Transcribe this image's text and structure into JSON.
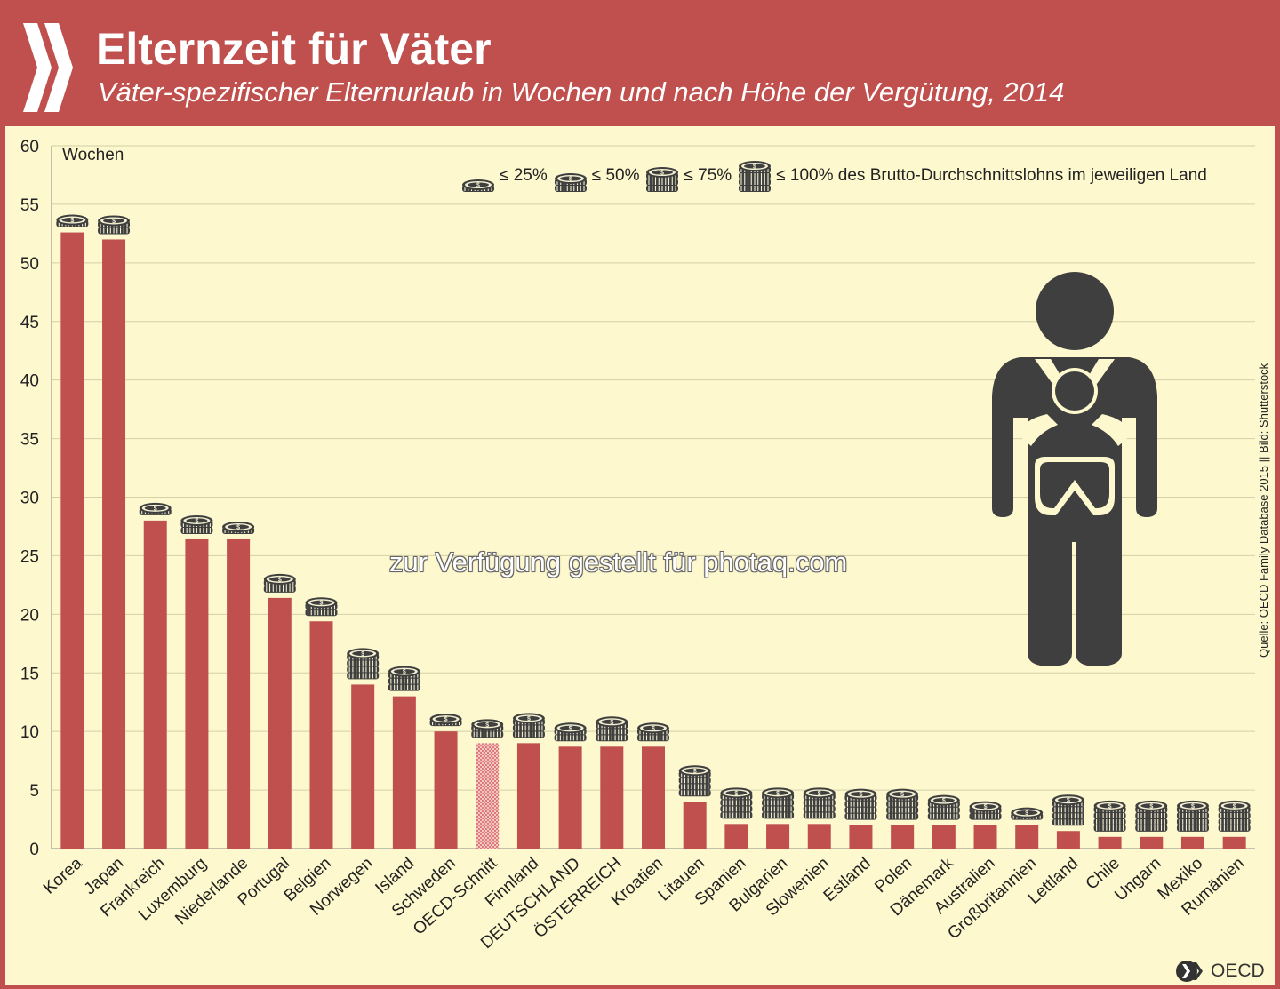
{
  "header": {
    "title": "Elternzeit für Väter",
    "subtitle": "Väter-spezifischer Elternurlaub in Wochen und nach Höhe der Vergütung, 2014"
  },
  "watermark": "zur Verfügung gestellt für photaq.com",
  "source": "Quelle: OECD Family Database 2015 || Bild: Shutterstock",
  "logo": {
    "text": "OECD",
    "icon": "oecd-chevron-icon"
  },
  "colors": {
    "frame": "#c0504d",
    "bar": "#c0504d",
    "plot_bg": "#fdf8cd",
    "icon": "#3f3f3f"
  },
  "legend": {
    "items": [
      {
        "label": "≤ 25%",
        "coins": 1
      },
      {
        "label": "≤ 50%",
        "coins": 2
      },
      {
        "label": "≤ 75%",
        "coins": 3
      },
      {
        "label": "≤ 100% des Brutto-Durchschnittslohns im jeweiligen Land",
        "coins": 4
      }
    ]
  },
  "chart_data": {
    "type": "bar",
    "ylabel": "Wochen",
    "ylim": [
      0,
      60
    ],
    "yticks": [
      0,
      5,
      10,
      15,
      20,
      25,
      30,
      35,
      40,
      45,
      50,
      55,
      60
    ],
    "grid": true,
    "legend_position": "top-right",
    "categories": [
      "Korea",
      "Japan",
      "Frankreich",
      "Luxemburg",
      "Niederlande",
      "Portugal",
      "Belgien",
      "Norwegen",
      "Island",
      "Schweden",
      "OECD-Schnitt",
      "Finnland",
      "DEUTSCHLAND",
      "ÖSTERREICH",
      "Kroatien",
      "Litauen",
      "Spanien",
      "Bulgarien",
      "Slowenien",
      "Estland",
      "Polen",
      "Dänemark",
      "Australien",
      "Großbritannien",
      "Lettland",
      "Chile",
      "Ungarn",
      "Mexiko",
      "Rumänien"
    ],
    "values": [
      52.6,
      52.0,
      28.0,
      26.4,
      26.4,
      21.4,
      19.4,
      14.0,
      13.0,
      10.0,
      9.0,
      9.0,
      8.7,
      8.7,
      8.7,
      4.0,
      2.1,
      2.1,
      2.1,
      2.0,
      2.0,
      2.0,
      2.0,
      2.0,
      1.5,
      1.0,
      1.0,
      1.0,
      1.0
    ],
    "payment_coins": [
      1,
      2,
      1,
      2,
      1,
      2,
      2,
      4,
      3,
      1,
      2,
      3,
      2,
      3,
      2,
      4,
      4,
      4,
      4,
      4,
      4,
      3,
      2,
      1,
      4,
      4,
      4,
      4,
      4
    ],
    "hatched_categories": [
      "OECD-Schnitt"
    ]
  }
}
